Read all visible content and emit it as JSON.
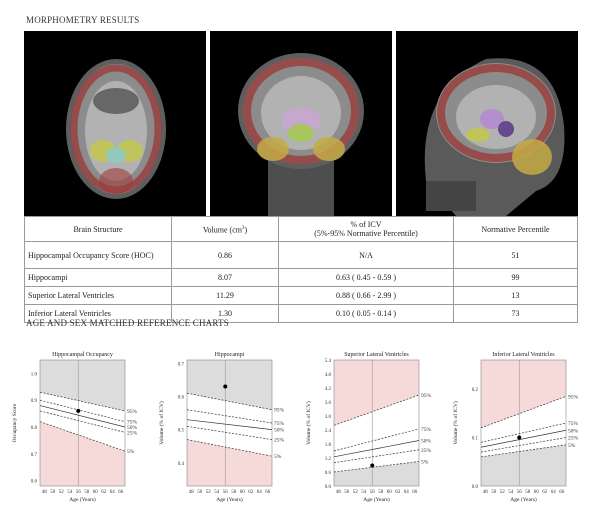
{
  "header": {
    "morphometry_title": "MORPHOMETRY RESULTS",
    "charts_title": "AGE AND SEX MATCHED REFERENCE CHARTS"
  },
  "scans": [
    {
      "view": "axial-mri-icon"
    },
    {
      "view": "coronal-mri-icon"
    },
    {
      "view": "sagittal-mri-icon"
    }
  ],
  "table": {
    "headers": {
      "structure": "Brain Structure",
      "volume_main": "Volume (cm",
      "volume_sup": "3",
      "volume_end": ")",
      "icv_line1": "% of ICV",
      "icv_line2": "(5%-95% Normative Percentile)",
      "percentile": "Normative Percentile"
    },
    "rows": [
      {
        "structure": "Hippocampal Occupancy Score (HOC)",
        "volume": "0.86",
        "icv": "N/A",
        "percentile": "51"
      },
      {
        "structure": "Hippocampi",
        "volume": "8.07",
        "icv": "0.63 ( 0.45 - 0.59 )",
        "percentile": "99"
      },
      {
        "structure": "Superior Lateral Ventricles",
        "volume": "11.29",
        "icv": "0.88 ( 0.66 - 2.99 )",
        "percentile": "13"
      },
      {
        "structure": "Inferior Lateral Ventricles",
        "volume": "1.30",
        "icv": "0.10 ( 0.05 - 0.14 )",
        "percentile": "73"
      }
    ]
  },
  "colors": {
    "shade_gray": "#dcdcdc",
    "shade_pink": "#f6d9d9",
    "curve": "#333333",
    "patient_dot": "#000000"
  },
  "chart_data": [
    {
      "type": "line",
      "title": "Hippocampal Occupancy",
      "xlabel": "Age (Years)",
      "ylabel": "Occupancy Score",
      "x_ticks": [
        48,
        50,
        52,
        54,
        56,
        58,
        60,
        62,
        64,
        66
      ],
      "y_ticks": [
        "0.6",
        "0.7",
        "0.8",
        "0.9",
        "1.0"
      ],
      "xlim": [
        47,
        67
      ],
      "ylim": [
        0.58,
        1.05
      ],
      "x": [
        47,
        67
      ],
      "series": [
        {
          "name": "95%",
          "values": [
            0.93,
            0.86
          ]
        },
        {
          "name": "75%",
          "values": [
            0.9,
            0.82
          ]
        },
        {
          "name": "50%",
          "values": [
            0.88,
            0.8
          ]
        },
        {
          "name": "25%",
          "values": [
            0.86,
            0.78
          ]
        },
        {
          "name": "5%",
          "values": [
            0.82,
            0.71
          ]
        }
      ],
      "shade_above": "gray",
      "shade_below": "pink",
      "patient": {
        "age": 56,
        "value": 0.86
      }
    },
    {
      "type": "line",
      "title": "Hippocampi",
      "xlabel": "Age (Years)",
      "ylabel": "Volume (% of ICV)",
      "x_ticks": [
        48,
        50,
        52,
        54,
        56,
        58,
        60,
        62,
        64,
        66
      ],
      "y_ticks": [
        "0.4",
        "0.5",
        "0.6",
        "0.7"
      ],
      "xlim": [
        47,
        67
      ],
      "ylim": [
        0.33,
        0.71
      ],
      "x": [
        47,
        67
      ],
      "series": [
        {
          "name": "95%",
          "values": [
            0.61,
            0.56
          ]
        },
        {
          "name": "75%",
          "values": [
            0.56,
            0.52
          ]
        },
        {
          "name": "50%",
          "values": [
            0.53,
            0.5
          ]
        },
        {
          "name": "25%",
          "values": [
            0.51,
            0.47
          ]
        },
        {
          "name": "5%",
          "values": [
            0.47,
            0.42
          ]
        }
      ],
      "shade_above": "gray",
      "shade_below": "pink",
      "patient": {
        "age": 56,
        "value": 0.63
      }
    },
    {
      "type": "line",
      "title": "Superior Lateral Ventricles",
      "xlabel": "Age (Years)",
      "ylabel": "Volume (% of ICV)",
      "x_ticks": [
        48,
        50,
        52,
        54,
        56,
        58,
        60,
        62,
        64,
        66
      ],
      "y_ticks": [
        "0.0",
        "0.6",
        "1.2",
        "1.8",
        "2.4",
        "3.0",
        "3.6",
        "4.2",
        "4.8",
        "5.4"
      ],
      "xlim": [
        47,
        67
      ],
      "ylim": [
        0.0,
        5.4
      ],
      "x": [
        47,
        67
      ],
      "series": [
        {
          "name": "95%",
          "values": [
            2.6,
            3.9
          ]
        },
        {
          "name": "75%",
          "values": [
            1.5,
            2.45
          ]
        },
        {
          "name": "50%",
          "values": [
            1.25,
            1.95
          ]
        },
        {
          "name": "25%",
          "values": [
            1.0,
            1.55
          ]
        },
        {
          "name": "5%",
          "values": [
            0.6,
            1.05
          ]
        }
      ],
      "shade_above": "pink",
      "shade_below": "gray",
      "patient": {
        "age": 56,
        "value": 0.88
      }
    },
    {
      "type": "line",
      "title": "Inferior Lateral Ventricles",
      "xlabel": "Age (Years)",
      "ylabel": "Volume (% of ICV)",
      "x_ticks": [
        48,
        50,
        52,
        54,
        56,
        58,
        60,
        62,
        64,
        66
      ],
      "y_ticks": [
        "0.0",
        "0.1",
        "0.2"
      ],
      "xlim": [
        47,
        67
      ],
      "ylim": [
        0.0,
        0.26
      ],
      "x": [
        47,
        67
      ],
      "series": [
        {
          "name": "95%",
          "values": [
            0.12,
            0.185
          ]
        },
        {
          "name": "75%",
          "values": [
            0.09,
            0.13
          ]
        },
        {
          "name": "50%",
          "values": [
            0.08,
            0.115
          ]
        },
        {
          "name": "25%",
          "values": [
            0.07,
            0.1
          ]
        },
        {
          "name": "5%",
          "values": [
            0.06,
            0.085
          ]
        }
      ],
      "shade_above": "pink",
      "shade_below": "gray",
      "patient": {
        "age": 56,
        "value": 0.1
      }
    }
  ]
}
